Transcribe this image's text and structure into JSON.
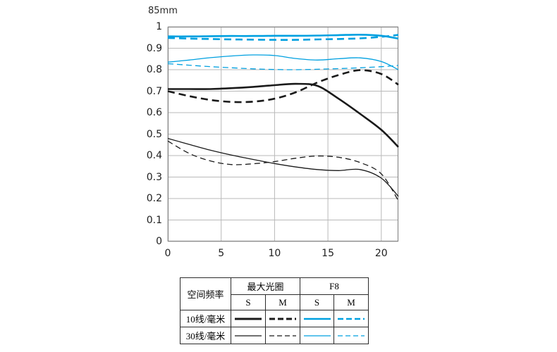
{
  "title": "85mm",
  "colors": {
    "blue": "#00a0e0",
    "black": "#1a1a1a",
    "grid": "#b9b9b9",
    "border": "#8a8a8a"
  },
  "chart_data": {
    "type": "line",
    "title": "85mm",
    "xlabel": "",
    "ylabel": "",
    "xlim": [
      0,
      21.6
    ],
    "ylim": [
      0,
      1
    ],
    "x_ticks": [
      0,
      5,
      10,
      15,
      20
    ],
    "y_ticks": [
      0,
      0.1,
      0.2,
      0.3,
      0.4,
      0.5,
      0.6,
      0.7,
      0.8,
      0.9,
      1
    ],
    "grid": true,
    "legend_position": "bottom-table",
    "x": [
      0,
      2,
      4,
      6,
      8,
      10,
      12,
      14,
      16,
      18,
      20,
      21.6
    ],
    "series": [
      {
        "name": "30线/毫米 F8 M",
        "color": "#00a0e0",
        "width": 1.3,
        "dash": "8 5",
        "values": [
          0.828,
          0.821,
          0.814,
          0.809,
          0.804,
          0.801,
          0.8,
          0.802,
          0.805,
          0.809,
          0.814,
          0.82
        ]
      },
      {
        "name": "30线/毫米 F8 S",
        "color": "#00a0e0",
        "width": 1.3,
        "dash": null,
        "values": [
          0.835,
          0.845,
          0.856,
          0.864,
          0.869,
          0.866,
          0.852,
          0.845,
          0.851,
          0.855,
          0.838,
          0.8
        ]
      },
      {
        "name": "10线/毫米 F8 M",
        "color": "#00a0e0",
        "width": 2.6,
        "dash": "10 6",
        "values": [
          0.948,
          0.945,
          0.943,
          0.941,
          0.94,
          0.939,
          0.939,
          0.941,
          0.943,
          0.946,
          0.953,
          0.962
        ]
      },
      {
        "name": "10线/毫米 F8 S",
        "color": "#00a0e0",
        "width": 2.6,
        "dash": null,
        "values": [
          0.955,
          0.955,
          0.956,
          0.957,
          0.957,
          0.958,
          0.958,
          0.959,
          0.961,
          0.963,
          0.958,
          0.945
        ]
      },
      {
        "name": "30线/毫米 最大光圈 M",
        "color": "#1a1a1a",
        "width": 1.3,
        "dash": "8 5",
        "values": [
          0.468,
          0.41,
          0.375,
          0.358,
          0.362,
          0.372,
          0.388,
          0.398,
          0.392,
          0.368,
          0.315,
          0.19
        ]
      },
      {
        "name": "30线/毫米 最大光圈 S",
        "color": "#1a1a1a",
        "width": 1.3,
        "dash": null,
        "values": [
          0.48,
          0.452,
          0.425,
          0.402,
          0.382,
          0.363,
          0.347,
          0.335,
          0.33,
          0.335,
          0.295,
          0.21
        ]
      },
      {
        "name": "10线/毫米 最大光圈 M",
        "color": "#1a1a1a",
        "width": 2.6,
        "dash": "10 6",
        "values": [
          0.7,
          0.677,
          0.659,
          0.65,
          0.651,
          0.665,
          0.695,
          0.74,
          0.775,
          0.798,
          0.78,
          0.73
        ]
      },
      {
        "name": "10线/毫米 最大光圈 S",
        "color": "#1a1a1a",
        "width": 2.6,
        "dash": null,
        "values": [
          0.71,
          0.71,
          0.71,
          0.714,
          0.72,
          0.728,
          0.734,
          0.725,
          0.665,
          0.595,
          0.52,
          0.44
        ]
      }
    ]
  },
  "legend_table": {
    "col1_header": "空间频率",
    "group_headers": [
      "最大光圈",
      "F8"
    ],
    "sub_headers": [
      "S",
      "M",
      "S",
      "M"
    ],
    "rows": [
      {
        "label": "10线/毫米",
        "samples": [
          {
            "color": "#1a1a1a",
            "width": 3,
            "dash": null
          },
          {
            "color": "#1a1a1a",
            "width": 3,
            "dash": "8 4"
          },
          {
            "color": "#00a0e0",
            "width": 2.4,
            "dash": null
          },
          {
            "color": "#00a0e0",
            "width": 2.4,
            "dash": "8 4"
          }
        ]
      },
      {
        "label": "30线/毫米",
        "samples": [
          {
            "color": "#1a1a1a",
            "width": 1.3,
            "dash": null
          },
          {
            "color": "#1a1a1a",
            "width": 1.3,
            "dash": "7 4"
          },
          {
            "color": "#00a0e0",
            "width": 1.3,
            "dash": null
          },
          {
            "color": "#00a0e0",
            "width": 1.3,
            "dash": "7 4"
          }
        ]
      }
    ]
  }
}
